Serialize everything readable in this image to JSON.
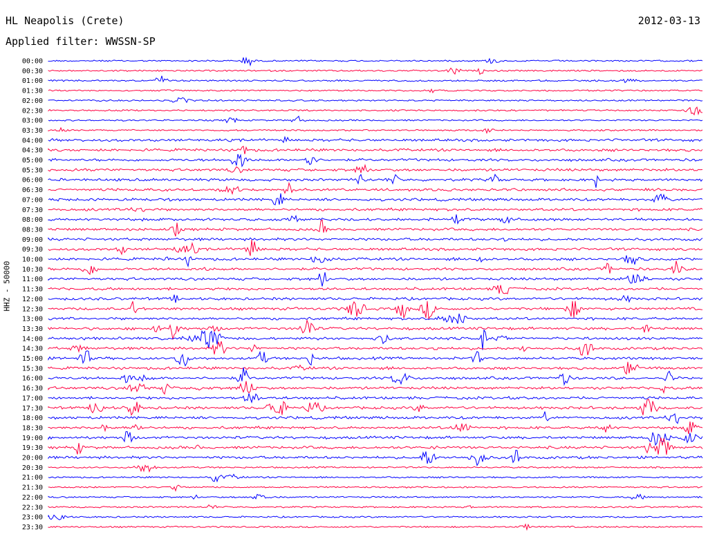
{
  "header": {
    "station": "HL Neapolis (Crete)",
    "date": "2012-03-13",
    "filter": "Applied filter: WWSSN-SP"
  },
  "colors": {
    "blue": "#0000ff",
    "red": "#ff0040"
  },
  "chart_data": {
    "type": "line",
    "title": "HL Neapolis (Crete)",
    "subtitle": "Applied filter: WWSSN-SP",
    "ylabel": "HHZ - 50000",
    "xlabel": "",
    "categories": [
      "00:00",
      "00:30",
      "01:00",
      "01:30",
      "02:00",
      "02:30",
      "03:00",
      "03:30",
      "04:00",
      "04:30",
      "05:00",
      "05:30",
      "06:00",
      "06:30",
      "07:00",
      "07:30",
      "08:00",
      "08:30",
      "09:00",
      "09:30",
      "10:00",
      "10:30",
      "11:00",
      "11:30",
      "12:00",
      "12:30",
      "13:00",
      "13:30",
      "14:00",
      "14:30",
      "15:00",
      "15:30",
      "16:00",
      "16:30",
      "17:00",
      "17:30",
      "18:00",
      "18:30",
      "19:00",
      "19:30",
      "20:00",
      "20:30",
      "21:00",
      "21:30",
      "22:00",
      "22:30",
      "23:00",
      "23:30"
    ],
    "series_colors": [
      "#0000ff",
      "#ff0040"
    ],
    "legend": "none",
    "grid": false
  }
}
